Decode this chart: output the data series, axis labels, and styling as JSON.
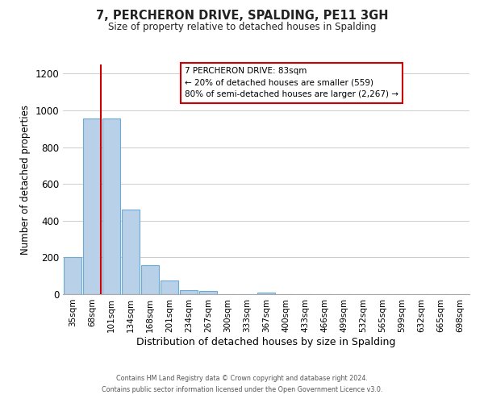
{
  "title": "7, PERCHERON DRIVE, SPALDING, PE11 3GH",
  "subtitle": "Size of property relative to detached houses in Spalding",
  "xlabel": "Distribution of detached houses by size in Spalding",
  "ylabel": "Number of detached properties",
  "bar_labels": [
    "35sqm",
    "68sqm",
    "101sqm",
    "134sqm",
    "168sqm",
    "201sqm",
    "234sqm",
    "267sqm",
    "300sqm",
    "333sqm",
    "367sqm",
    "400sqm",
    "433sqm",
    "466sqm",
    "499sqm",
    "532sqm",
    "565sqm",
    "599sqm",
    "632sqm",
    "665sqm",
    "698sqm"
  ],
  "bar_values": [
    200,
    955,
    955,
    460,
    160,
    75,
    22,
    18,
    0,
    0,
    10,
    0,
    0,
    0,
    0,
    0,
    0,
    0,
    0,
    0,
    0
  ],
  "bar_color": "#b8d0e8",
  "bar_edge_color": "#6aaad4",
  "vline_color": "#cc0000",
  "ylim": [
    0,
    1250
  ],
  "yticks": [
    0,
    200,
    400,
    600,
    800,
    1000,
    1200
  ],
  "annotation_title": "7 PERCHERON DRIVE: 83sqm",
  "annotation_line1": "← 20% of detached houses are smaller (559)",
  "annotation_line2": "80% of semi-detached houses are larger (2,267) →",
  "annotation_box_color": "#ffffff",
  "annotation_box_edge_color": "#cc0000",
  "footer_line1": "Contains HM Land Registry data © Crown copyright and database right 2024.",
  "footer_line2": "Contains public sector information licensed under the Open Government Licence v3.0.",
  "background_color": "#ffffff",
  "grid_color": "#cccccc"
}
